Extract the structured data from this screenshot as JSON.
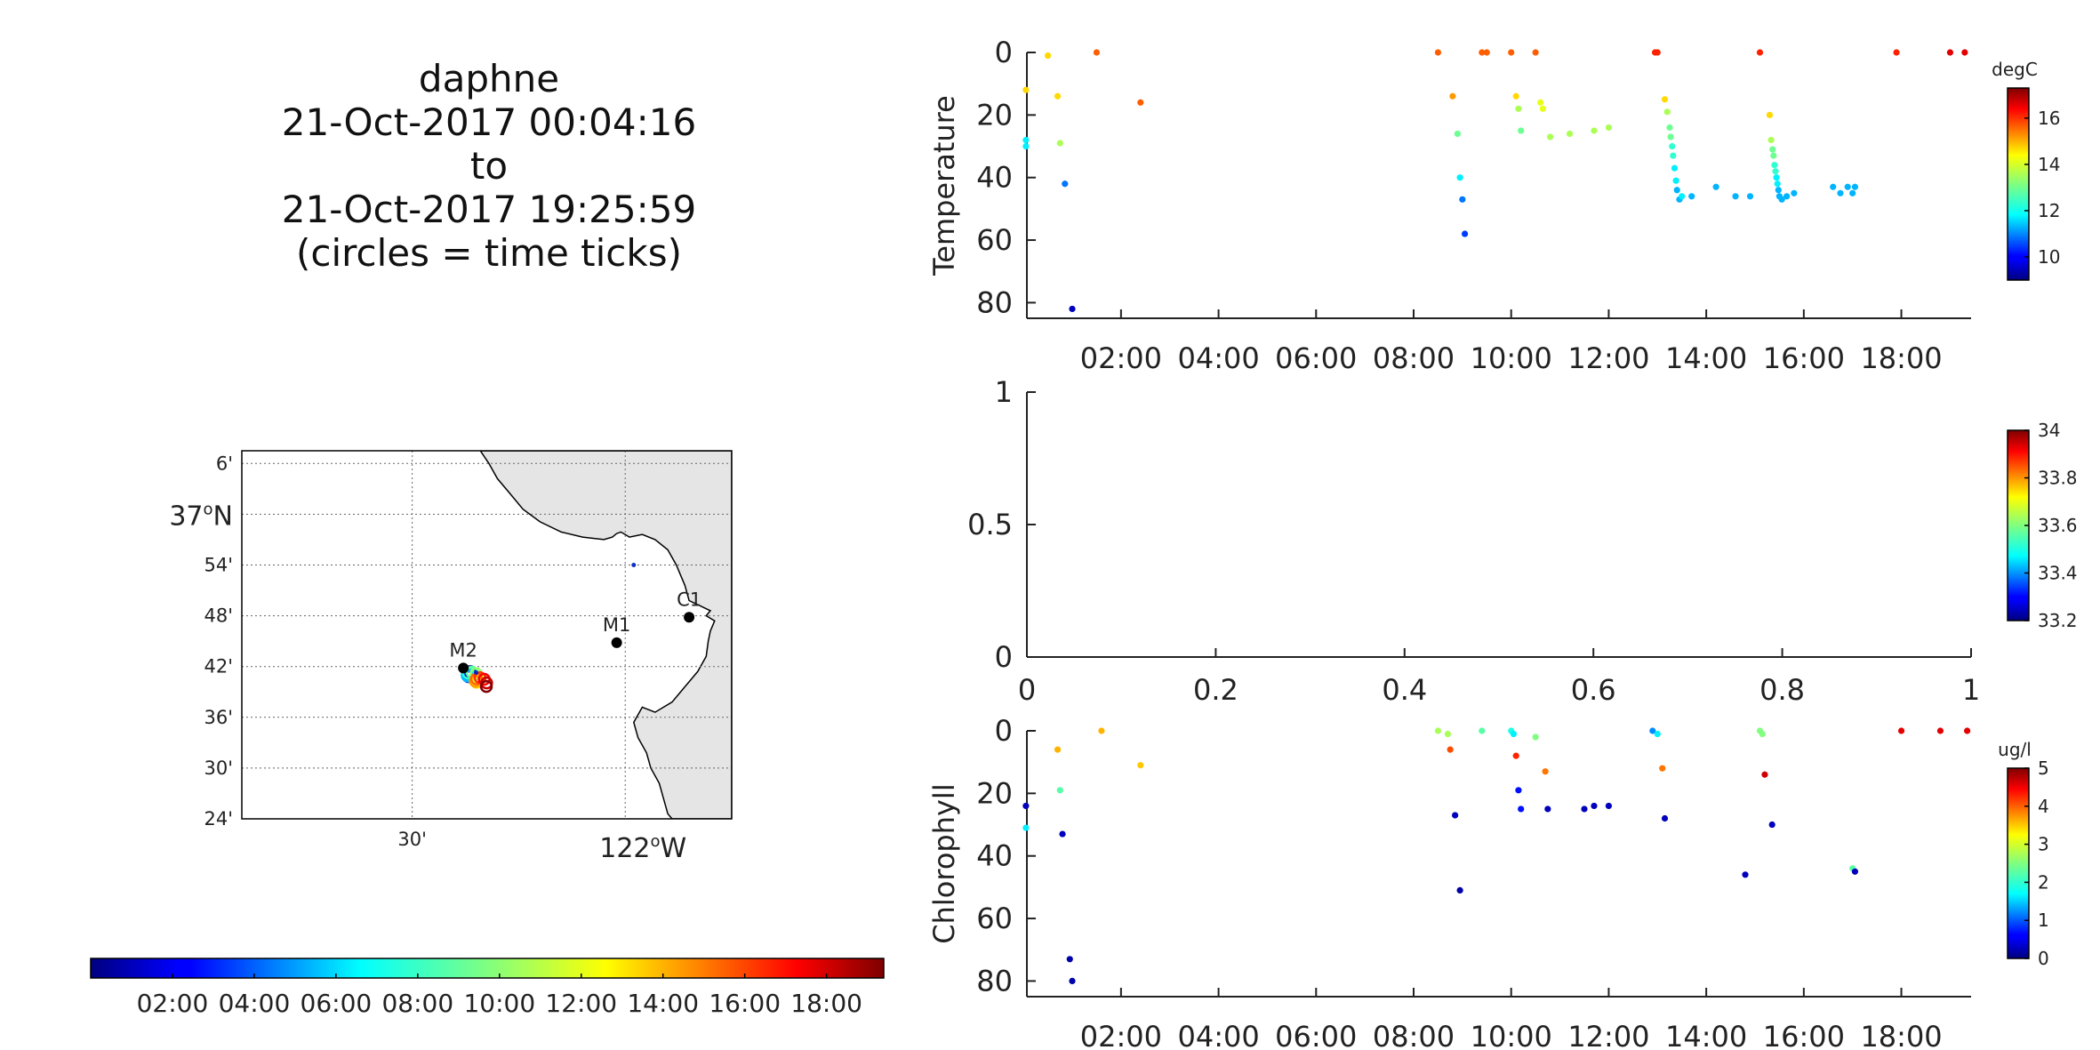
{
  "title": {
    "vehicle": "daphne",
    "start": "21-Oct-2017 00:04:16",
    "to": "to",
    "end": "21-Oct-2017 19:25:59",
    "note": "(circles = time ticks)"
  },
  "colors": {
    "land": "#e5e5e5",
    "coast": "#000000",
    "axis": "#222222"
  },
  "chart_data": [
    {
      "type": "map",
      "lat_ticks": [
        {
          "lat": 37.1,
          "label": "6'"
        },
        {
          "lat": 37.0,
          "label": "37°N"
        },
        {
          "lat": 36.9,
          "label": "54'"
        },
        {
          "lat": 36.8,
          "label": "48'"
        },
        {
          "lat": 36.7,
          "label": "42'"
        },
        {
          "lat": 36.6,
          "label": "36'"
        },
        {
          "lat": 36.5,
          "label": "30'"
        },
        {
          "lat": 36.4,
          "label": "24'"
        }
      ],
      "lon_ticks": [
        {
          "lon": -122.5,
          "label": "30'"
        },
        {
          "lon": -122.0,
          "label": "122°W"
        }
      ],
      "lon_range": [
        -122.9,
        -121.75
      ],
      "lat_range": [
        36.4,
        37.125
      ],
      "stations": [
        {
          "name": "C1",
          "lon": -121.85,
          "lat": 36.797
        },
        {
          "name": "M1",
          "lon": -122.02,
          "lat": 36.747
        },
        {
          "name": "M2",
          "lon": -122.38,
          "lat": 36.697
        }
      ],
      "track_color_hours": [
        0.1,
        2,
        4,
        6,
        8,
        9,
        10,
        11,
        12,
        13,
        14,
        15,
        16,
        17,
        18,
        19.4
      ],
      "colorbar_ticks": [
        "02:00",
        "04:00",
        "06:00",
        "08:00",
        "10:00",
        "12:00",
        "14:00",
        "16:00",
        "18:00"
      ]
    },
    {
      "type": "scatter",
      "ylabel": "Temperature",
      "y_reversed": true,
      "ylim": [
        0,
        85
      ],
      "xlim": [
        0.07,
        19.43
      ],
      "x_ticks": [
        "02:00",
        "04:00",
        "06:00",
        "08:00",
        "10:00",
        "12:00",
        "14:00",
        "16:00",
        "18:00"
      ],
      "y_ticks": [
        0,
        20,
        40,
        60,
        80
      ],
      "colorbar": {
        "label": "degC",
        "range": [
          9,
          17.3
        ],
        "ticks": [
          10,
          12,
          14,
          16
        ]
      },
      "points": [
        [
          0.05,
          12,
          14.5
        ],
        [
          0.05,
          28,
          12.0
        ],
        [
          0.05,
          30,
          12.0
        ],
        [
          0.5,
          1,
          14.5
        ],
        [
          0.7,
          14,
          14.5
        ],
        [
          0.75,
          29,
          13.5
        ],
        [
          0.85,
          42,
          11.0
        ],
        [
          1.0,
          82,
          9.5
        ],
        [
          1.5,
          0,
          15.5
        ],
        [
          2.4,
          16,
          15.5
        ],
        [
          8.5,
          0,
          15.5
        ],
        [
          8.8,
          14,
          15.0
        ],
        [
          8.9,
          26,
          13.0
        ],
        [
          8.95,
          40,
          12.0
        ],
        [
          9.0,
          47,
          11.0
        ],
        [
          9.05,
          58,
          10.5
        ],
        [
          9.4,
          0,
          15.5
        ],
        [
          9.5,
          0,
          15.5
        ],
        [
          10.0,
          0,
          15.5
        ],
        [
          10.5,
          0,
          15.5
        ],
        [
          10.1,
          14,
          14.5
        ],
        [
          10.15,
          18,
          13.5
        ],
        [
          10.2,
          25,
          13.0
        ],
        [
          10.6,
          16,
          14.0
        ],
        [
          10.65,
          18,
          14.0
        ],
        [
          10.8,
          27,
          13.5
        ],
        [
          11.2,
          26,
          13.5
        ],
        [
          11.7,
          25,
          13.5
        ],
        [
          12.0,
          24,
          13.5
        ],
        [
          12.95,
          0,
          16.0
        ],
        [
          13.0,
          0,
          16.0
        ],
        [
          13.15,
          15,
          14.5
        ],
        [
          13.2,
          19,
          13.5
        ],
        [
          13.25,
          24,
          13.0
        ],
        [
          13.27,
          27,
          13.0
        ],
        [
          13.3,
          30,
          12.5
        ],
        [
          13.32,
          33,
          12.5
        ],
        [
          13.35,
          37,
          12.0
        ],
        [
          13.38,
          41,
          12.0
        ],
        [
          13.4,
          44,
          11.5
        ],
        [
          13.45,
          47,
          11.5
        ],
        [
          13.5,
          46,
          12.0
        ],
        [
          13.7,
          46,
          11.5
        ],
        [
          14.2,
          43,
          11.5
        ],
        [
          14.6,
          46,
          11.5
        ],
        [
          14.9,
          46,
          11.5
        ],
        [
          15.1,
          0,
          16.0
        ],
        [
          15.3,
          20,
          14.5
        ],
        [
          15.33,
          28,
          13.5
        ],
        [
          15.36,
          31,
          13.0
        ],
        [
          15.38,
          33,
          13.0
        ],
        [
          15.4,
          36,
          12.5
        ],
        [
          15.42,
          38,
          12.5
        ],
        [
          15.44,
          40,
          12.0
        ],
        [
          15.46,
          42,
          12.0
        ],
        [
          15.48,
          44,
          11.5
        ],
        [
          15.5,
          46,
          11.5
        ],
        [
          15.55,
          47,
          11.5
        ],
        [
          15.65,
          46,
          11.5
        ],
        [
          15.8,
          45,
          11.5
        ],
        [
          16.6,
          43,
          11.5
        ],
        [
          16.75,
          45,
          11.5
        ],
        [
          16.9,
          43,
          11.5
        ],
        [
          17.0,
          45,
          11.5
        ],
        [
          17.05,
          43,
          11.5
        ],
        [
          17.9,
          0,
          16.0
        ],
        [
          19.0,
          0,
          16.5
        ],
        [
          19.3,
          0,
          16.5
        ]
      ]
    },
    {
      "type": "scatter",
      "ylabel": "",
      "xlim": [
        0,
        1
      ],
      "ylim": [
        0,
        1
      ],
      "x_ticks": [
        "0",
        "0.2",
        "0.4",
        "0.6",
        "0.8",
        "1"
      ],
      "y_ticks": [
        "0",
        "0.5",
        "1"
      ],
      "colorbar": {
        "label": "",
        "range": [
          33.2,
          34.0
        ],
        "ticks": [
          "33.2",
          "33.4",
          "33.6",
          "33.8",
          "34"
        ]
      },
      "points": []
    },
    {
      "type": "scatter",
      "ylabel": "Chlorophyll",
      "y_reversed": true,
      "ylim": [
        0,
        85
      ],
      "xlim": [
        0.07,
        19.43
      ],
      "x_ticks": [
        "02:00",
        "04:00",
        "06:00",
        "08:00",
        "10:00",
        "12:00",
        "14:00",
        "16:00",
        "18:00"
      ],
      "y_ticks": [
        0,
        20,
        40,
        60,
        80
      ],
      "colorbar": {
        "label": "ug/l",
        "range": [
          0,
          5
        ],
        "ticks": [
          0,
          1,
          2,
          3,
          4,
          5
        ]
      },
      "points": [
        [
          0.05,
          24,
          0.3
        ],
        [
          0.05,
          31,
          1.8
        ],
        [
          0.7,
          6,
          3.5
        ],
        [
          0.75,
          19,
          2.3
        ],
        [
          0.8,
          33,
          0.3
        ],
        [
          0.95,
          73,
          0.2
        ],
        [
          1.0,
          80,
          0.2
        ],
        [
          1.6,
          0,
          3.5
        ],
        [
          2.4,
          11,
          3.4
        ],
        [
          8.5,
          0,
          2.7
        ],
        [
          8.7,
          1,
          2.7
        ],
        [
          8.75,
          6,
          4.0
        ],
        [
          8.85,
          27,
          0.3
        ],
        [
          8.95,
          51,
          0.2
        ],
        [
          9.4,
          0,
          2.3
        ],
        [
          10.0,
          0,
          2.0
        ],
        [
          10.05,
          1,
          1.8
        ],
        [
          10.1,
          8,
          4.2
        ],
        [
          10.15,
          19,
          0.7
        ],
        [
          10.2,
          25,
          0.7
        ],
        [
          10.5,
          2,
          2.5
        ],
        [
          10.7,
          13,
          3.8
        ],
        [
          10.75,
          25,
          0.3
        ],
        [
          11.5,
          25,
          0.3
        ],
        [
          11.7,
          24,
          0.3
        ],
        [
          12.0,
          24,
          0.3
        ],
        [
          12.9,
          0,
          1.3
        ],
        [
          13.0,
          1,
          1.8
        ],
        [
          13.1,
          12,
          3.8
        ],
        [
          13.15,
          28,
          0.3
        ],
        [
          14.8,
          46,
          0.3
        ],
        [
          15.1,
          0,
          2.5
        ],
        [
          15.15,
          1,
          2.5
        ],
        [
          15.2,
          14,
          4.6
        ],
        [
          15.35,
          30,
          0.3
        ],
        [
          17.0,
          44,
          2.3
        ],
        [
          17.05,
          45,
          0.3
        ],
        [
          18.0,
          0,
          4.5
        ],
        [
          18.8,
          0,
          4.5
        ],
        [
          19.35,
          0,
          4.5
        ]
      ]
    }
  ]
}
